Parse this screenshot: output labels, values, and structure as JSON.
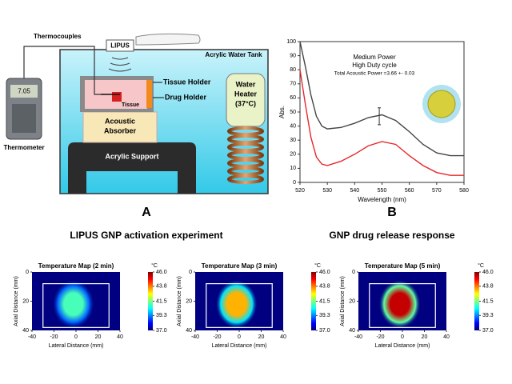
{
  "figure_a": {
    "panel_label": "A",
    "caption": "LIPUS GNP activation experiment",
    "labels": {
      "thermocouples": "Thermocouples",
      "lipus": "LIPUS",
      "tank": "Acrylic Water Tank",
      "tissue_holder": "Tissue Holder",
      "drug_holder": "Drug Holder",
      "tissue": "Tissue",
      "absorber": [
        "Acoustic",
        "Absorber"
      ],
      "heater": [
        "Water",
        "Heater",
        "(37°C)"
      ],
      "support": "Acrylic Support",
      "thermometer": "Thermometer",
      "display": "7.05"
    }
  },
  "figure_b": {
    "panel_label": "B",
    "caption": "GNP drug release response"
  },
  "chart_data": [
    {
      "type": "line",
      "annotation": [
        "Medium Power",
        "High Duty cycle",
        "Total Acoustic Power =3.66 +- 0.03"
      ],
      "xlabel": "Wavelength (nm)",
      "ylabel": "Abs.",
      "x": [
        520,
        522,
        524,
        526,
        528,
        530,
        535,
        540,
        545,
        550,
        555,
        560,
        565,
        570,
        575,
        580
      ],
      "series": [
        {
          "color": "#444444",
          "values": [
            100,
            82,
            62,
            47,
            40,
            38,
            39,
            42,
            46,
            48,
            44,
            36,
            27,
            21,
            19,
            19
          ]
        },
        {
          "color": "#e8262a",
          "values": [
            80,
            55,
            32,
            18,
            13,
            12,
            15,
            20,
            26,
            29,
            27,
            19,
            12,
            7,
            5,
            5
          ]
        }
      ],
      "error_bar": {
        "x": 549,
        "value": 47,
        "error": 6
      },
      "xlim": [
        520,
        580
      ],
      "ylim": [
        0,
        100
      ],
      "xticks": [
        520,
        530,
        540,
        550,
        560,
        570,
        580
      ],
      "yticks": [
        0,
        10,
        20,
        30,
        40,
        50,
        60,
        70,
        80,
        90,
        100
      ]
    },
    {
      "type": "heatmap",
      "title": "Temperature Map (2 min)",
      "xlabel": "Lateral Distance (mm)",
      "ylabel": "Axial Distance (mm)",
      "peak_value": 41,
      "xlim": [
        -40,
        40
      ],
      "ylim": [
        0,
        40
      ],
      "y_inverted": true,
      "xticks": [
        -40,
        -20,
        0,
        20,
        40
      ],
      "yticks": [
        0,
        20,
        40
      ],
      "colorbar_label": "°C",
      "clim": [
        37,
        46
      ],
      "colorbar_ticks": [
        {
          "value": 46,
          "label": "46.0"
        },
        43.8,
        41.5,
        39.3,
        {
          "value": 37,
          "label": "37.0"
        }
      ]
    },
    {
      "type": "heatmap",
      "title": "Temperature Map (3 min)",
      "xlabel": "Lateral Distance (mm)",
      "ylabel": "Axial Distance (mm)",
      "peak_value": 43.3,
      "xlim": [
        -40,
        40
      ],
      "ylim": [
        0,
        40
      ],
      "y_inverted": true,
      "xticks": [
        -40,
        -20,
        0,
        20,
        40
      ],
      "yticks": [
        0,
        20,
        40
      ],
      "colorbar_label": "°C",
      "clim": [
        37,
        46
      ],
      "colorbar_ticks": [
        {
          "value": 46,
          "label": "46.0"
        },
        43.8,
        41.5,
        39.3,
        {
          "value": 37,
          "label": "37.0"
        }
      ]
    },
    {
      "type": "heatmap",
      "title": "Temperature Map (5 min)",
      "xlabel": "Lateral Distance (mm)",
      "ylabel": "Axial Distance (mm)",
      "peak_value": 45.4,
      "xlim": [
        -40,
        40
      ],
      "ylim": [
        0,
        40
      ],
      "y_inverted": true,
      "xticks": [
        -40,
        -20,
        0,
        20,
        40
      ],
      "yticks": [
        0,
        20,
        40
      ],
      "colorbar_label": "°C",
      "clim": [
        37,
        46
      ],
      "colorbar_ticks": [
        {
          "value": 46,
          "label": "46.0"
        },
        43.8,
        41.5,
        39.3,
        {
          "value": 37,
          "label": "37.0"
        }
      ]
    }
  ]
}
